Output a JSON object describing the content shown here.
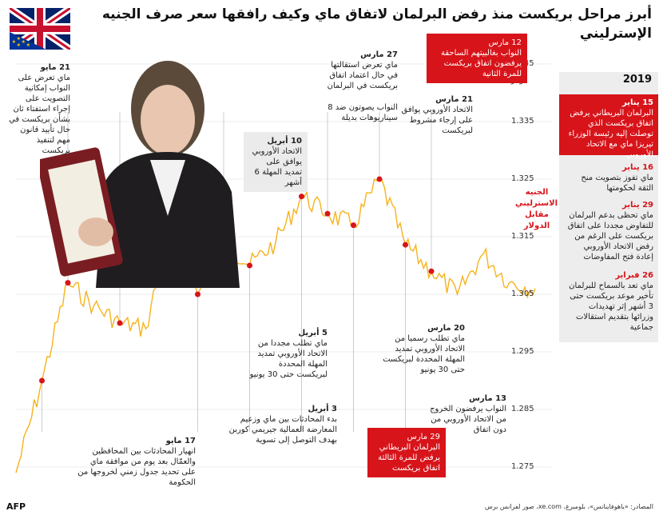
{
  "title": "أبرز مراحل بريكست منذ رفض البرلمان لاتفاق ماي وكيف رافقها سعر صرف الجنيه الإسترليني",
  "colors": {
    "line": "#f6b31c",
    "marker": "#d7141a",
    "red_box": "#d7141a",
    "grey_box": "#ebebeb"
  },
  "icons": {
    "flag": "uk-eu-flag-icon",
    "portrait": "theresa-may-portrait",
    "logo": "afp-logo-icon"
  },
  "chart_data": {
    "type": "line",
    "ylim": [
      1.27,
      1.345
    ],
    "yticks": [
      "1.275",
      "1.285",
      "1.295",
      "1.305",
      "1.315",
      "1.325",
      "1.335",
      "1.345"
    ],
    "y_unit": "دولار",
    "series": [
      {
        "name": "الجنيه الاسترليني مقابل الدولار",
        "values": [
          1.274,
          1.29,
          1.307,
          1.303,
          1.3,
          1.299,
          1.318,
          1.305,
          1.314,
          1.31,
          1.314,
          1.322,
          1.319,
          1.317,
          1.325,
          1.3136,
          1.309,
          1.305,
          1.312,
          1.307,
          1.306
        ]
      }
    ]
  },
  "series_label": "الجنيه الاسترليني مقابل الدولار",
  "events": {
    "e1": {
      "date": "17 مايو",
      "text": "انهيار المحادثات بين المحافظين والعمّال بعد يوم من موافقة ماي على تحديد جدول زمني لخروجها من الحكومة"
    },
    "e2": {
      "date": "21 مايو",
      "text": "ماي تعرض على النواب إمكانية التصويت على إجراء استفتاء ثان بشأن بريكست في حال تأييد قانون مهم لتنفيذ بريكست"
    },
    "e3": {
      "date": "3 أبريل",
      "text": "بدء المحادثات بين ماي وزعيم المعارضة العمالية جيريمي كوربن بهدف التوصل إلى تسوية"
    },
    "e4": {
      "date": "5 أبريل",
      "text": "ماي تطلب مجددا من الاتحاد الأوروبي تمديد المهلة المحددة لبريكست حتى 30 يونيو"
    },
    "e5": {
      "date": "10 أبريل",
      "text": "الاتحاد الأوروبي يوافق على تمديد المهلة 6 أشهر"
    },
    "e6": {
      "date": "27 مارس",
      "text": "ماي تعرض استقالتها في حال اعتماد اتفاق بريكست في البرلمان"
    },
    "e7": {
      "date": "",
      "text": "النواب يصوتون ضد 8 سيناريوهات بديلة"
    },
    "e8": {
      "date": "29 مارس",
      "text": "البرلمان البريطاني يرفض للمرة الثالثة اتفاق بريكست"
    },
    "e9": {
      "date": "20 مارس",
      "text": "ماي تطلب رسميا من الاتحاد الأوروبي تمديد المهلة المحددة لبريكست حتى 30 يونيو"
    },
    "e10": {
      "date": "21 مارس",
      "text": "الاتحاد الأوروبي يوافق على إرجاء مشروط لبريكست"
    },
    "e11": {
      "date": "12 مارس",
      "text": "النواب بغالبيتهم الساحقة يرفضون اتفاق بريكست للمرة الثانية"
    },
    "e12": {
      "date": "13 مارس",
      "text": "النواب يرفضون الخروج من الاتحاد الأوروبي من دون اتفاق"
    }
  },
  "panel": {
    "year": "2019",
    "items": [
      {
        "date": "15 يناير",
        "text": "البرلمان البريطاني يرفض اتفاق بريكست الذي توصلت إليه رئيسة الوزراء تيريزا ماي مع الاتحاد الأوروبي"
      },
      {
        "date": "16 يناير",
        "text": "ماي تفوز بتصويت منح الثقة لحكومتها"
      },
      {
        "date": "29 يناير",
        "text": "ماي تحظى بدعم البرلمان للتفاوض مجددا على اتفاق بريكست على الرغم من رفض الاتحاد الأوروبي إعادة فتح المفاوضات"
      },
      {
        "date": "26 فبراير",
        "text": "ماي تعد بالسماح للبرلمان تأخير موعد بريكست حتى 3 أشهر إثر تهديدات وزرائها بتقديم استقالات جماعية"
      }
    ]
  },
  "source": "المصادر: «ياهوفاينانس»، بلومبرغ، xe.com، صور لفرانس برس",
  "logo": "AFP"
}
